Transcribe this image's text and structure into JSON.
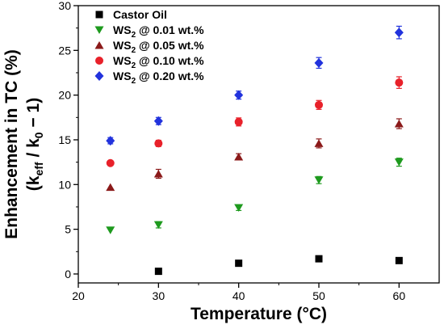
{
  "chart_data": {
    "type": "scatter",
    "xlabel": "Temperature (°C)",
    "ylabel_line1": "Enhancement in TC (%)",
    "ylabel_line2": {
      "open": "(k",
      "sub1": "eff",
      "mid": " / k",
      "sub2": "0",
      "close": " − 1)"
    },
    "xlim": [
      20,
      65
    ],
    "ylim": [
      -1,
      30
    ],
    "xticks": [
      20,
      30,
      40,
      50,
      60
    ],
    "yticks": [
      0,
      5,
      10,
      15,
      20,
      25,
      30
    ],
    "grid": false,
    "legend_position": "top-left",
    "series": [
      {
        "name": "Castor Oil",
        "name_parts": [
          "Castor Oil"
        ],
        "marker": "square",
        "color": "#000000",
        "points": [
          {
            "x": 30,
            "y": 0.3,
            "err": 0
          },
          {
            "x": 40,
            "y": 1.2,
            "err": 0
          },
          {
            "x": 50,
            "y": 1.7,
            "err": 0
          },
          {
            "x": 60,
            "y": 1.5,
            "err": 0
          }
        ]
      },
      {
        "name": "WS2 @ 0.01 wt.%",
        "name_parts": [
          "WS",
          "2",
          " @ 0.01 wt.%"
        ],
        "marker": "triangle-down",
        "color": "#1e9a1e",
        "points": [
          {
            "x": 24,
            "y": 4.9,
            "err": 0
          },
          {
            "x": 30,
            "y": 5.5,
            "err": 0.35
          },
          {
            "x": 40,
            "y": 7.4,
            "err": 0.3
          },
          {
            "x": 50,
            "y": 10.5,
            "err": 0.4
          },
          {
            "x": 60,
            "y": 12.5,
            "err": 0.45
          }
        ]
      },
      {
        "name": "WS2 @ 0.05 wt.%",
        "name_parts": [
          "WS",
          "2",
          " @ 0.05 wt.%"
        ],
        "marker": "triangle-up",
        "color": "#8b1a1a",
        "points": [
          {
            "x": 24,
            "y": 9.7,
            "err": 0
          },
          {
            "x": 30,
            "y": 11.2,
            "err": 0.5
          },
          {
            "x": 40,
            "y": 13.1,
            "err": 0.35
          },
          {
            "x": 50,
            "y": 14.6,
            "err": 0.5
          },
          {
            "x": 60,
            "y": 16.8,
            "err": 0.55
          }
        ]
      },
      {
        "name": "WS2 @ 0.10 wt.%",
        "name_parts": [
          "WS",
          "2",
          " @ 0.10 wt.%"
        ],
        "marker": "circle",
        "color": "#e8212a",
        "points": [
          {
            "x": 24,
            "y": 12.4,
            "err": 0
          },
          {
            "x": 30,
            "y": 14.6,
            "err": 0.35
          },
          {
            "x": 40,
            "y": 17.0,
            "err": 0.45
          },
          {
            "x": 50,
            "y": 18.9,
            "err": 0.5
          },
          {
            "x": 60,
            "y": 21.4,
            "err": 0.65
          }
        ]
      },
      {
        "name": "WS2 @ 0.20 wt.%",
        "name_parts": [
          "WS",
          "2",
          " @ 0.20 wt.%"
        ],
        "marker": "diamond",
        "color": "#2233dd",
        "points": [
          {
            "x": 24,
            "y": 14.9,
            "err": 0.35
          },
          {
            "x": 30,
            "y": 17.1,
            "err": 0.4
          },
          {
            "x": 40,
            "y": 20.0,
            "err": 0.45
          },
          {
            "x": 50,
            "y": 23.6,
            "err": 0.6
          },
          {
            "x": 60,
            "y": 27.0,
            "err": 0.7
          }
        ]
      }
    ]
  }
}
